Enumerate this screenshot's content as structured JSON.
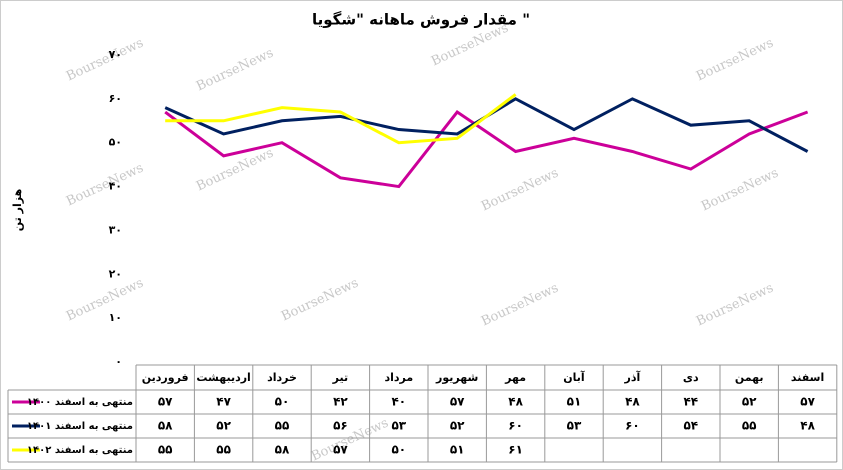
{
  "chart_data": {
    "type": "line",
    "title": "مقدار فروش ماهانه \"شگویا \"",
    "y_label": "هزار تن",
    "watermark": "BourseNews",
    "categories": [
      "فروردین",
      "اردیبهشت",
      "خرداد",
      "تیر",
      "مرداد",
      "شهریور",
      "مهر",
      "آبان",
      "آذر",
      "دی",
      "بهمن",
      "اسفند"
    ],
    "series": [
      {
        "name": "منتهی به اسفند ۱۴۰۰",
        "color": "#cc0099",
        "values": [
          57,
          47,
          50,
          42,
          40,
          57,
          48,
          51,
          48,
          44,
          52,
          57
        ],
        "value_labels": [
          "۵۷",
          "۴۷",
          "۵۰",
          "۴۲",
          "۴۰",
          "۵۷",
          "۴۸",
          "۵۱",
          "۴۸",
          "۴۴",
          "۵۲",
          "۵۷"
        ]
      },
      {
        "name": "منتهی به اسفند ۱۴۰۱",
        "color": "#002060",
        "values": [
          58,
          52,
          55,
          56,
          53,
          52,
          60,
          53,
          60,
          54,
          55,
          48
        ],
        "value_labels": [
          "۵۸",
          "۵۲",
          "۵۵",
          "۵۶",
          "۵۳",
          "۵۲",
          "۶۰",
          "۵۳",
          "۶۰",
          "۵۴",
          "۵۵",
          "۴۸"
        ]
      },
      {
        "name": "منتهی به اسفند ۱۴۰۲",
        "color": "#ffff00",
        "values": [
          55,
          55,
          58,
          57,
          50,
          51,
          61,
          null,
          null,
          null,
          null,
          null
        ],
        "value_labels": [
          "۵۵",
          "۵۵",
          "۵۸",
          "۵۷",
          "۵۰",
          "۵۱",
          "۶۱",
          null,
          null,
          null,
          null,
          null
        ]
      }
    ],
    "ylim": [
      0,
      70
    ],
    "yticks": [
      {
        "value": 0,
        "label": "۰"
      },
      {
        "value": 10,
        "label": "۱۰"
      },
      {
        "value": 20,
        "label": "۲۰"
      },
      {
        "value": 30,
        "label": "۳۰"
      },
      {
        "value": 40,
        "label": "۴۰"
      },
      {
        "value": 50,
        "label": "۵۰"
      },
      {
        "value": 60,
        "label": "۶۰"
      },
      {
        "value": 70,
        "label": "۷۰"
      }
    ],
    "grid": false
  }
}
